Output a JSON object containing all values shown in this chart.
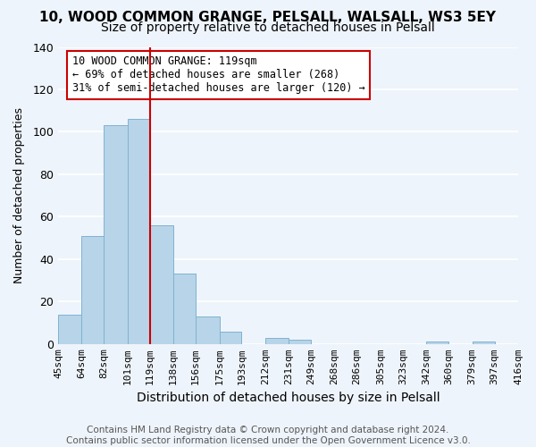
{
  "title": "10, WOOD COMMON GRANGE, PELSALL, WALSALL, WS3 5EY",
  "subtitle": "Size of property relative to detached houses in Pelsall",
  "xlabel": "Distribution of detached houses by size in Pelsall",
  "ylabel": "Number of detached properties",
  "bar_edges": [
    45,
    64,
    82,
    101,
    119,
    138,
    156,
    175,
    193,
    212,
    231,
    249,
    268,
    286,
    305,
    323,
    342,
    360,
    379,
    397,
    416
  ],
  "bar_heights": [
    14,
    51,
    103,
    106,
    56,
    33,
    13,
    6,
    0,
    3,
    2,
    0,
    0,
    0,
    0,
    0,
    1,
    0,
    1,
    0
  ],
  "tick_labels": [
    "45sqm",
    "64sqm",
    "82sqm",
    "101sqm",
    "119sqm",
    "138sqm",
    "156sqm",
    "175sqm",
    "193sqm",
    "212sqm",
    "231sqm",
    "249sqm",
    "268sqm",
    "286sqm",
    "305sqm",
    "323sqm",
    "342sqm",
    "360sqm",
    "379sqm",
    "397sqm",
    "416sqm"
  ],
  "bar_color": "#b8d4e8",
  "bar_edge_color": "#7fb3d3",
  "vline_x": 119,
  "vline_color": "#cc0000",
  "ylim": [
    0,
    140
  ],
  "yticks": [
    0,
    20,
    40,
    60,
    80,
    100,
    120,
    140
  ],
  "annotation_line1": "10 WOOD COMMON GRANGE: 119sqm",
  "annotation_line2": "← 69% of detached houses are smaller (268)",
  "annotation_line3": "31% of semi-detached houses are larger (120) →",
  "annotation_box_color": "#ffffff",
  "annotation_box_edge": "#cc0000",
  "footer_line1": "Contains HM Land Registry data © Crown copyright and database right 2024.",
  "footer_line2": "Contains public sector information licensed under the Open Government Licence v3.0.",
  "background_color": "#eef4fb",
  "plot_bg_color": "#eef4fb",
  "grid_color": "#ffffff",
  "title_fontsize": 11,
  "subtitle_fontsize": 10,
  "xlabel_fontsize": 10,
  "ylabel_fontsize": 9,
  "tick_fontsize": 8,
  "annotation_fontsize": 8.5,
  "footer_fontsize": 7.5
}
